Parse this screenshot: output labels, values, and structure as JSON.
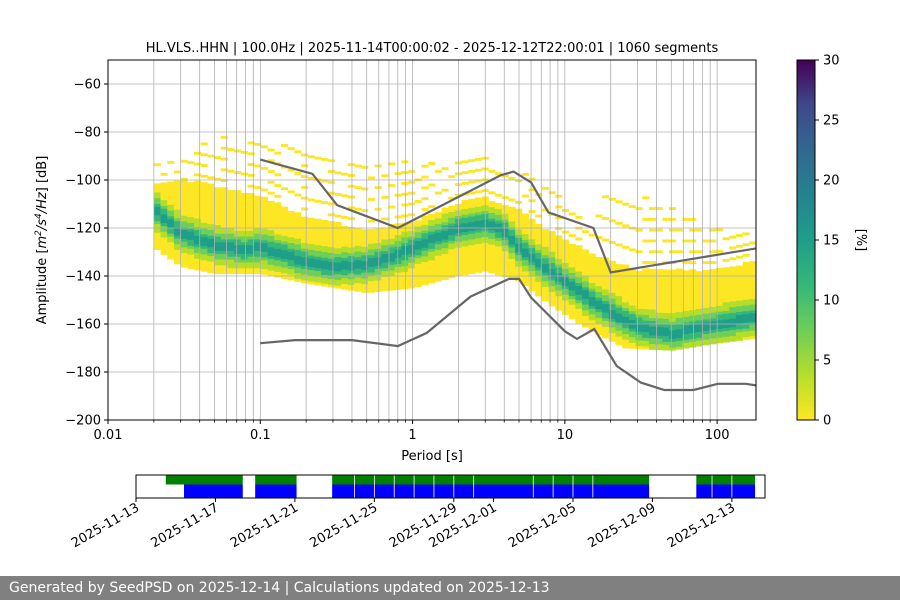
{
  "chart_data": [
    {
      "type": "heatmap",
      "title": "HL.VLS..HHN | 100.0Hz | 2025-11-14T00:00:02 - 2025-12-12T22:00:01 | 1060 segments",
      "xlabel": "Period [s]",
      "ylabel": "Amplitude [m²/s⁴/Hz] [dB]",
      "x_scale": "log",
      "xlim": [
        0.01,
        180
      ],
      "ylim": [
        -200,
        -50
      ],
      "x_ticks": [
        {
          "value": 0.01,
          "label": "0.01"
        },
        {
          "value": 0.1,
          "label": "0.1"
        },
        {
          "value": 1,
          "label": "1"
        },
        {
          "value": 10,
          "label": "10"
        },
        {
          "value": 100,
          "label": "100"
        }
      ],
      "y_ticks": [
        {
          "value": -60,
          "label": "−60"
        },
        {
          "value": -80,
          "label": "−80"
        },
        {
          "value": -100,
          "label": "−100"
        },
        {
          "value": -120,
          "label": "−120"
        },
        {
          "value": -140,
          "label": "−140"
        },
        {
          "value": -160,
          "label": "−160"
        },
        {
          "value": -180,
          "label": "−180"
        },
        {
          "value": -200,
          "label": "−200"
        }
      ],
      "grid": true,
      "colorbar": {
        "label": "[%]",
        "min": 0,
        "max": 30,
        "ticks": [
          {
            "value": 0,
            "label": "0"
          },
          {
            "value": 5,
            "label": "5"
          },
          {
            "value": 10,
            "label": "10"
          },
          {
            "value": 15,
            "label": "15"
          },
          {
            "value": 20,
            "label": "20"
          },
          {
            "value": 25,
            "label": "25"
          },
          {
            "value": 30,
            "label": "30"
          }
        ]
      },
      "psd_mode": [
        [
          0.02,
          -112
        ],
        [
          0.03,
          -122
        ],
        [
          0.05,
          -127
        ],
        [
          0.08,
          -129
        ],
        [
          0.1,
          -128
        ],
        [
          0.15,
          -131
        ],
        [
          0.2,
          -134
        ],
        [
          0.3,
          -136
        ],
        [
          0.5,
          -135
        ],
        [
          0.8,
          -131
        ],
        [
          1.2,
          -126
        ],
        [
          2,
          -120
        ],
        [
          3,
          -118
        ],
        [
          4,
          -121
        ],
        [
          5,
          -128
        ],
        [
          7,
          -135
        ],
        [
          10,
          -142
        ],
        [
          15,
          -150
        ],
        [
          20,
          -155
        ],
        [
          30,
          -161
        ],
        [
          50,
          -164
        ],
        [
          100,
          -160
        ],
        [
          180,
          -157
        ]
      ],
      "psd_envelope_upper": [
        [
          0.02,
          -102
        ],
        [
          0.03,
          -100
        ],
        [
          0.05,
          -103
        ],
        [
          0.1,
          -107
        ],
        [
          0.2,
          -116
        ],
        [
          0.5,
          -121
        ],
        [
          1,
          -118
        ],
        [
          2,
          -110
        ],
        [
          3,
          -108
        ],
        [
          5,
          -113
        ],
        [
          8,
          -122
        ],
        [
          15,
          -131
        ],
        [
          30,
          -138
        ],
        [
          100,
          -138
        ],
        [
          180,
          -134
        ]
      ],
      "psd_envelope_lower": [
        [
          0.02,
          -128
        ],
        [
          0.03,
          -136
        ],
        [
          0.05,
          -139
        ],
        [
          0.1,
          -139
        ],
        [
          0.2,
          -143
        ],
        [
          0.5,
          -147
        ],
        [
          1,
          -145
        ],
        [
          2,
          -140
        ],
        [
          3,
          -138
        ],
        [
          5,
          -142
        ],
        [
          8,
          -152
        ],
        [
          15,
          -163
        ],
        [
          25,
          -170
        ],
        [
          50,
          -171
        ],
        [
          100,
          -168
        ],
        [
          180,
          -166
        ]
      ],
      "psd_scatter_upper": [
        [
          0.02,
          -93
        ],
        [
          0.05,
          -84
        ],
        [
          0.065,
          -80
        ],
        [
          0.1,
          -84
        ],
        [
          0.2,
          -88
        ],
        [
          0.5,
          -91
        ],
        [
          1,
          -93
        ],
        [
          2,
          -91
        ],
        [
          3,
          -90
        ],
        [
          5,
          -95
        ],
        [
          10,
          -105
        ],
        [
          15,
          -118
        ],
        [
          20,
          -100
        ],
        [
          30,
          -106
        ],
        [
          60,
          -114
        ],
        [
          100,
          -120
        ],
        [
          180,
          -120
        ]
      ],
      "reference_curves": [
        {
          "points": [
            [
              0.1,
              -91.5
            ],
            [
              0.22,
              -97.4
            ],
            [
              0.32,
              -110.5
            ],
            [
              0.8,
              -120
            ],
            [
              3.8,
              -98
            ],
            [
              4.6,
              -96.5
            ],
            [
              6,
              -101
            ],
            [
              7.8,
              -113.5
            ],
            [
              15.4,
              -120
            ],
            [
              20,
              -138.5
            ],
            [
              180,
              -128.5
            ]
          ]
        },
        {
          "points": [
            [
              0.1,
              -168
            ],
            [
              0.17,
              -166.7
            ],
            [
              0.4,
              -166.7
            ],
            [
              0.8,
              -169.2
            ],
            [
              1.24,
              -163.7
            ],
            [
              2.4,
              -148.6
            ],
            [
              4.3,
              -141.2
            ],
            [
              5.0,
              -141.2
            ],
            [
              6.0,
              -149.0
            ],
            [
              10,
              -163.0
            ],
            [
              12,
              -166.2
            ],
            [
              15.6,
              -162.1
            ],
            [
              21.9,
              -177.5
            ],
            [
              31.6,
              -184.4
            ],
            [
              45,
              -187.5
            ],
            [
              70,
              -187.5
            ],
            [
              101,
              -184.9
            ],
            [
              154,
              -184.9
            ],
            [
              180,
              -185.6
            ]
          ]
        }
      ]
    },
    {
      "type": "bar",
      "x_type": "date",
      "xlim": [
        "2025-11-13T00:00",
        "2025-12-14T16:00"
      ],
      "x_tick_labels": [
        {
          "date": "2025-11-13",
          "label": "2025-11-13"
        },
        {
          "date": "2025-11-17",
          "label": "2025-11-17"
        },
        {
          "date": "2025-11-21",
          "label": "2025-11-21"
        },
        {
          "date": "2025-11-25",
          "label": "2025-11-25"
        },
        {
          "date": "2025-11-29",
          "label": "2025-11-29"
        },
        {
          "date": "2025-12-01",
          "label": "2025-12-01"
        },
        {
          "date": "2025-12-05",
          "label": "2025-12-05"
        },
        {
          "date": "2025-12-09",
          "label": "2025-12-09"
        },
        {
          "date": "2025-12-13",
          "label": "2025-12-13"
        }
      ],
      "series": [
        {
          "color": "#008000",
          "row": "top",
          "intervals": [
            [
              "2025-11-14T12:00",
              "2025-11-18T09:00"
            ],
            [
              "2025-11-19T00:00",
              "2025-11-21T02:00"
            ],
            [
              "2025-11-22T21:00",
              "2025-12-08T20:00"
            ],
            [
              "2025-12-11T05:00",
              "2025-12-14T04:00"
            ]
          ]
        },
        {
          "color": "#0000ff",
          "row": "bottom",
          "intervals": [
            [
              "2025-11-15T10:00",
              "2025-11-18T09:00"
            ],
            [
              "2025-11-19T00:00",
              "2025-11-21T02:00"
            ],
            [
              "2025-11-22T21:00",
              "2025-12-08T20:00"
            ],
            [
              "2025-12-11T05:00",
              "2025-12-14T04:00"
            ]
          ]
        }
      ],
      "gaps": [
        "2025-11-24T00:00",
        "2025-11-25T00:00",
        "2025-11-26T00:00",
        "2025-11-27T00:00",
        "2025-11-28T00:00",
        "2025-11-29T00:00",
        "2025-11-30T00:00",
        "2025-12-03T00:00",
        "2025-12-04T00:00",
        "2025-12-05T00:00",
        "2025-12-06T00:00",
        "2025-12-12T00:00",
        "2025-12-13T00:00"
      ]
    }
  ],
  "footer": {
    "text": "Generated by SeedPSD on 2025-12-14 | Calculations updated on 2025-12-13"
  }
}
